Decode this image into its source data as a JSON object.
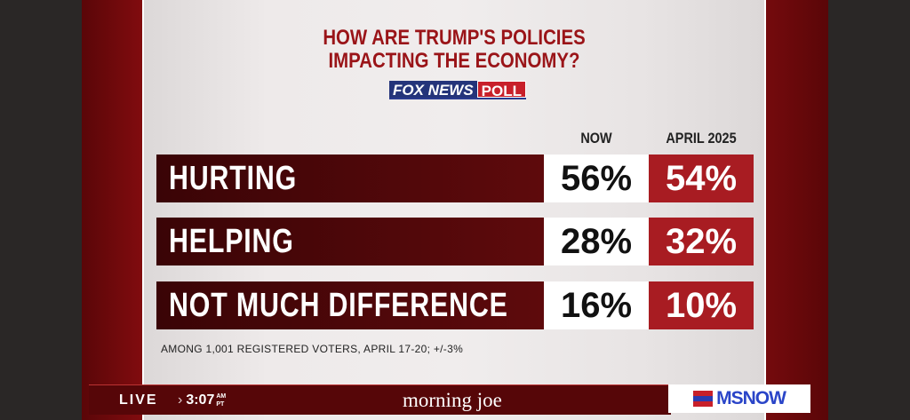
{
  "title": [
    "HOW ARE TRUMP'S POLICIES",
    "IMPACTING THE ECONOMY?"
  ],
  "logo": {
    "left": "FOX NEWS",
    "right": "POLL"
  },
  "columns": [
    "NOW",
    "APRIL 2025"
  ],
  "rows": [
    {
      "label": "HURTING",
      "now": "56%",
      "april": "54%"
    },
    {
      "label": "HELPING",
      "now": "28%",
      "april": "32%"
    },
    {
      "label": "NOT MUCH DIFFERENCE",
      "now": "16%",
      "april": "10%"
    }
  ],
  "footnote": "AMONG 1,001 REGISTERED VOTERS, APRIL 17-20; +/-3%",
  "lower_third": {
    "live": "LIVE",
    "time": "3:07",
    "ampm": "AM",
    "tz": "PT",
    "show": "morning joe",
    "network": "MSNOW"
  },
  "colors": {
    "accent_red": "#a81c22",
    "dark_red": "#560608",
    "title_red": "#9a1418"
  }
}
